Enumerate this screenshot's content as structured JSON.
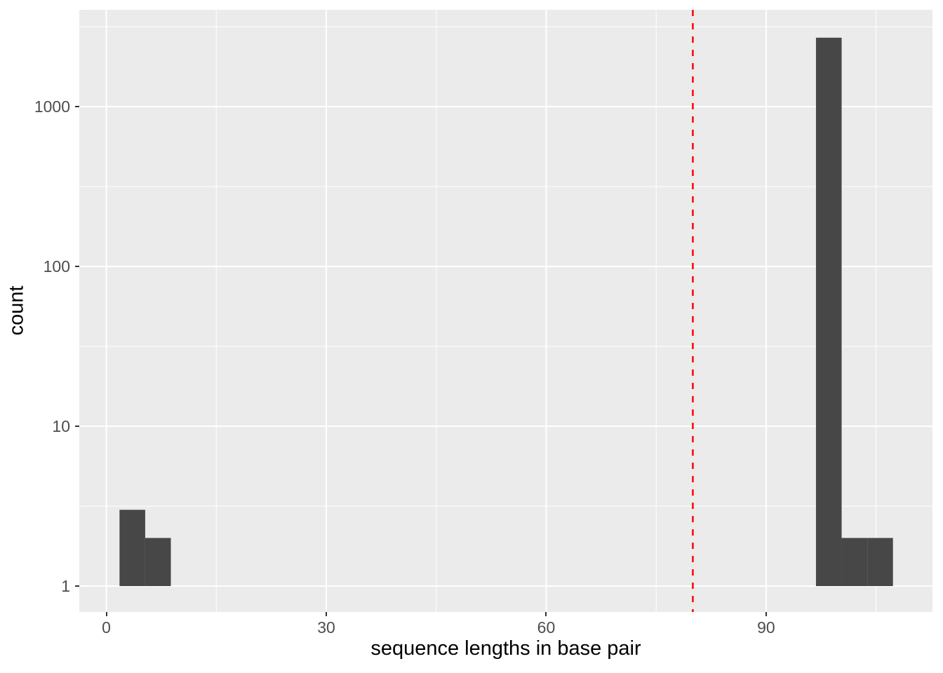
{
  "chart_data": {
    "type": "bar",
    "subtype": "histogram",
    "title": "",
    "xlabel": "sequence lengths in base pair",
    "ylabel": "count",
    "x_scale": "linear",
    "y_scale": "log10",
    "x_domain": [
      -3.69,
      112.69
    ],
    "y_domain_log10": [
      -0.1623,
      3.6058
    ],
    "x_major_ticks": [
      {
        "value": 0,
        "label": "0"
      },
      {
        "value": 30,
        "label": "30"
      },
      {
        "value": 60,
        "label": "60"
      },
      {
        "value": 90,
        "label": "90"
      }
    ],
    "y_major_ticks": [
      {
        "value": 1,
        "label": "1"
      },
      {
        "value": 10,
        "label": "10"
      },
      {
        "value": 100,
        "label": "100"
      },
      {
        "value": 1000,
        "label": "1000"
      }
    ],
    "x_minor_ticks": [
      15,
      45,
      75,
      105
    ],
    "y_minor_ticks": [
      3.1623,
      31.623,
      316.23,
      3162.3
    ],
    "bins": [
      {
        "x0": 1.8,
        "x1": 5.3,
        "count": 3
      },
      {
        "x0": 5.3,
        "x1": 8.8,
        "count": 2
      },
      {
        "x0": 96.8,
        "x1": 100.3,
        "count": 2700
      },
      {
        "x0": 100.3,
        "x1": 103.8,
        "count": 2
      },
      {
        "x0": 103.8,
        "x1": 107.3,
        "count": 2
      }
    ],
    "vline": {
      "x": 80,
      "style": "dashed",
      "color": "#FF0000"
    },
    "grid": true,
    "legend": "none",
    "colors": {
      "panel_bg": "#EBEBEB",
      "grid": "#FFFFFF",
      "bar_fill": "#474747",
      "tick_text": "#4D4D4D",
      "axis_title": "#000000",
      "tick_mark": "#333333"
    }
  }
}
